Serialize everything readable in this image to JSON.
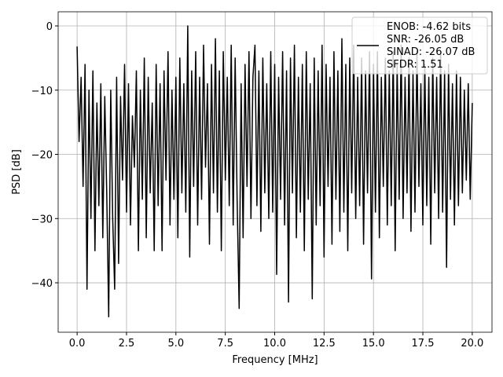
{
  "chart_data": {
    "type": "line",
    "title": "",
    "xlabel": "Frequency [MHz]",
    "ylabel": "PSD [dB]",
    "xlim": [
      -0.96,
      21.0
    ],
    "ylim": [
      -47.7,
      2.2
    ],
    "grid": true,
    "legend_placement": "upper-right",
    "line_color": "#000000",
    "x_ticks": [
      "0.0",
      "2.5",
      "5.0",
      "7.5",
      "10.0",
      "12.5",
      "15.0",
      "17.5",
      "20.0"
    ],
    "x_tick_values": [
      0,
      2.5,
      5,
      7.5,
      10,
      12.5,
      15,
      17.5,
      20
    ],
    "y_ticks": [
      "0",
      "−10",
      "−20",
      "−30",
      "−40"
    ],
    "y_tick_values": [
      0,
      -10,
      -20,
      -30,
      -40
    ],
    "legend": [
      "ENOB: -4.62 bits",
      "SNR: -26.05 dB",
      "SINAD: -26.07 dB",
      "SFDR: 1.51"
    ],
    "x_start": 0,
    "x_step": 0.1,
    "values": [
      -3.2,
      -18,
      -8,
      -25,
      -6,
      -41,
      -10,
      -30,
      -7,
      -35,
      -12,
      -28,
      -9,
      -33,
      -11,
      -26,
      -45.3,
      -10,
      -30,
      -41,
      -8,
      -37,
      -11,
      -24,
      -6,
      -29,
      -9,
      -31,
      -14,
      -22,
      -7,
      -35,
      -10,
      -27,
      -5,
      -33,
      -8,
      -26,
      -12,
      -35,
      -6,
      -28,
      -9,
      -35,
      -7,
      -24,
      -4,
      -31,
      -10,
      -27,
      -8,
      -33,
      -5,
      -26,
      -9,
      -29,
      0,
      -36,
      -7,
      -25,
      -4,
      -31,
      -8,
      -27,
      -3,
      -22,
      -9,
      -34,
      -6,
      -26,
      -2,
      -29,
      -7,
      -35,
      -4,
      -24,
      -8,
      -28,
      -3,
      -31,
      -5,
      -27,
      -44,
      -9,
      -33,
      -6,
      -25,
      -4,
      -30,
      -8,
      -3,
      -28,
      -7,
      -32,
      -5,
      -26,
      -9,
      -30,
      -4,
      -29,
      -6,
      -38.7,
      -8,
      -27,
      -4,
      -31,
      -7,
      -43,
      -5,
      -26,
      -3,
      -33,
      -8,
      -29,
      -6,
      -35,
      -4,
      -27,
      -9,
      -42.5,
      -5,
      -31,
      -7,
      -28,
      -3,
      -36,
      -6,
      -25,
      -8,
      -34,
      -4,
      -27,
      -7,
      -32,
      -2,
      -29,
      -6,
      -35,
      -5,
      -26,
      -3,
      -30,
      -8,
      -28,
      -5,
      -34,
      -7,
      -26,
      -4,
      -39.4,
      -6,
      -29,
      -4,
      -33,
      -8,
      -25,
      -5,
      -31,
      -7,
      -28,
      -4,
      -35,
      -6,
      -27,
      -3,
      -30,
      -8,
      -26,
      -5,
      -32,
      -7,
      -29,
      -4,
      -25,
      -9,
      -31,
      -6,
      -28,
      -8,
      -34,
      -5,
      -26,
      -8,
      -30,
      -4,
      -29,
      -7,
      -37.6,
      -6,
      -27,
      -9,
      -31,
      -7,
      -28,
      -8,
      -26,
      -10,
      -24,
      -9,
      -27,
      -12
    ]
  }
}
